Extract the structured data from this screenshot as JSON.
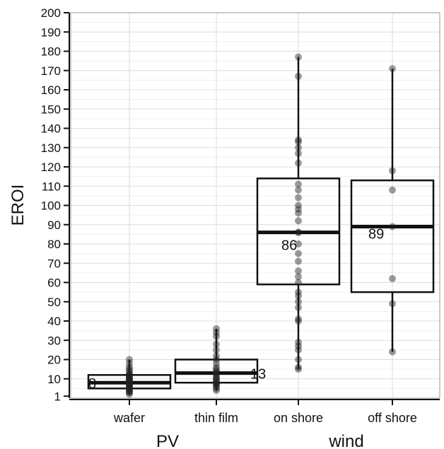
{
  "chart_data": {
    "type": "box",
    "ylabel": "EROI",
    "ylim": [
      0,
      200
    ],
    "yticks": [
      1,
      10,
      20,
      30,
      40,
      50,
      60,
      70,
      80,
      90,
      100,
      110,
      120,
      130,
      140,
      150,
      160,
      170,
      180,
      190,
      200
    ],
    "groups": [
      {
        "label": "PV",
        "categories": [
          "wafer",
          "thin film"
        ]
      },
      {
        "label": "wind",
        "categories": [
          "on shore",
          "off shore"
        ]
      }
    ],
    "boxes": [
      {
        "category": "wafer",
        "group": "PV",
        "median": 8,
        "median_label": "8",
        "q1": 5,
        "q3": 12,
        "whisker_low": 2,
        "whisker_high": 20,
        "points": [
          2,
          3,
          3,
          4,
          4,
          5,
          5,
          6,
          6,
          6,
          7,
          7,
          7,
          8,
          8,
          8,
          8,
          9,
          9,
          9,
          10,
          10,
          10,
          11,
          11,
          12,
          12,
          13,
          14,
          15,
          16,
          18,
          20
        ]
      },
      {
        "category": "thin film",
        "group": "PV",
        "median": 13,
        "median_label": "13",
        "q1": 8,
        "q3": 20,
        "whisker_low": 4,
        "whisker_high": 36,
        "points": [
          4,
          5,
          6,
          7,
          7,
          8,
          8,
          9,
          10,
          10,
          11,
          12,
          13,
          13,
          14,
          15,
          16,
          18,
          20,
          22,
          25,
          28,
          32,
          34,
          36
        ]
      },
      {
        "category": "on shore",
        "group": "wind",
        "median": 86,
        "median_label": "86",
        "q1": 59,
        "q3": 114,
        "whisker_low": 15,
        "whisker_high": 177,
        "points": [
          15,
          16,
          20,
          25,
          27,
          29,
          40,
          41,
          47,
          50,
          53,
          55,
          60,
          63,
          66,
          71,
          75,
          80,
          86,
          86,
          92,
          96,
          98,
          100,
          104,
          108,
          111,
          122,
          127,
          130,
          133,
          134,
          167,
          177
        ]
      },
      {
        "category": "off shore",
        "group": "wind",
        "median": 89,
        "median_label": "89",
        "q1": 55,
        "q3": 113,
        "whisker_low": 24,
        "whisker_high": 171,
        "points": [
          24,
          49,
          62,
          89,
          108,
          118,
          171
        ]
      }
    ],
    "grid": true
  }
}
